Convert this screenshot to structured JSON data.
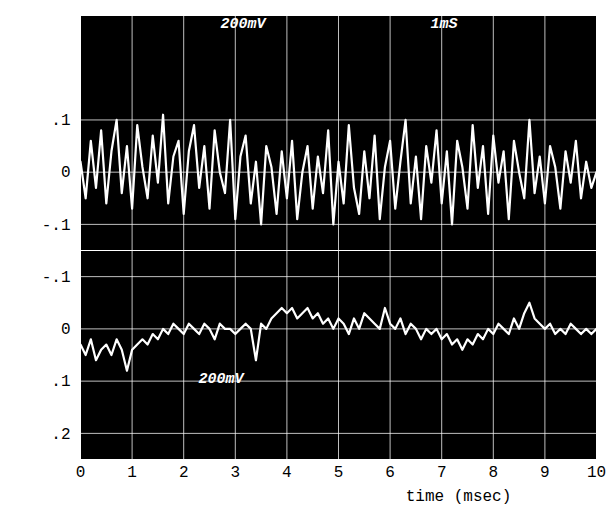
{
  "chart_data": [
    {
      "type": "line",
      "x": [
        0,
        0.1,
        0.2,
        0.3,
        0.4,
        0.5,
        0.6,
        0.7,
        0.8,
        0.9,
        1,
        1.1,
        1.2,
        1.3,
        1.4,
        1.5,
        1.6,
        1.7,
        1.8,
        1.9,
        2,
        2.1,
        2.2,
        2.3,
        2.4,
        2.5,
        2.6,
        2.7,
        2.8,
        2.9,
        3,
        3.1,
        3.2,
        3.3,
        3.4,
        3.5,
        3.6,
        3.7,
        3.8,
        3.9,
        4,
        4.1,
        4.2,
        4.3,
        4.4,
        4.5,
        4.6,
        4.7,
        4.8,
        4.9,
        5,
        5.1,
        5.2,
        5.3,
        5.4,
        5.5,
        5.6,
        5.7,
        5.8,
        5.9,
        6,
        6.1,
        6.2,
        6.3,
        6.4,
        6.5,
        6.6,
        6.7,
        6.8,
        6.9,
        7,
        7.1,
        7.2,
        7.3,
        7.4,
        7.5,
        7.6,
        7.7,
        7.8,
        7.9,
        8,
        8.1,
        8.2,
        8.3,
        8.4,
        8.5,
        8.6,
        8.7,
        8.8,
        8.9,
        9,
        9.1,
        9.2,
        9.3,
        9.4,
        9.5,
        9.6,
        9.7,
        9.8,
        9.9,
        10
      ],
      "values": [
        0.02,
        -0.05,
        0.06,
        -0.03,
        0.08,
        -0.06,
        0.04,
        0.1,
        -0.04,
        0.05,
        -0.07,
        0.09,
        0.01,
        -0.05,
        0.07,
        -0.02,
        0.11,
        -0.06,
        0.03,
        0.06,
        -0.08,
        0.04,
        0.09,
        -0.03,
        0.05,
        -0.07,
        0.08,
        0.0,
        -0.04,
        0.1,
        -0.09,
        0.03,
        0.07,
        -0.06,
        0.02,
        -0.1,
        0.05,
        0.01,
        -0.08,
        0.04,
        -0.05,
        0.06,
        -0.09,
        0.0,
        0.05,
        -0.07,
        0.03,
        -0.04,
        0.08,
        -0.1,
        0.02,
        -0.06,
        0.09,
        -0.03,
        -0.08,
        0.04,
        -0.05,
        0.07,
        -0.09,
        0.01,
        0.06,
        -0.07,
        0.02,
        0.1,
        -0.06,
        0.03,
        -0.09,
        0.05,
        -0.02,
        0.08,
        -0.06,
        0.04,
        -0.1,
        0.06,
        0.01,
        -0.07,
        0.09,
        -0.03,
        0.05,
        -0.08,
        0.07,
        -0.02,
        0.04,
        -0.09,
        0.06,
        0.0,
        -0.05,
        0.1,
        -0.04,
        0.03,
        -0.06,
        0.05,
        0.01,
        -0.07,
        0.04,
        -0.02,
        0.06,
        -0.05,
        0.02,
        -0.03,
        0.0
      ],
      "color": "#ffffff",
      "xlim": [
        0,
        10
      ],
      "xticks": [
        0,
        1,
        2,
        3,
        4,
        5,
        6,
        7,
        8,
        9,
        10
      ],
      "ylim": [
        -0.15,
        0.3
      ],
      "yticks": [
        {
          "value": 0.1,
          "label": ".1"
        },
        0,
        {
          "value": -0.1,
          "label": "-.1"
        }
      ],
      "grid": true,
      "tick_labels": "y",
      "annotations": [
        "200mV",
        "1mS"
      ]
    },
    {
      "type": "line",
      "x": [
        0,
        0.1,
        0.2,
        0.3,
        0.4,
        0.5,
        0.6,
        0.7,
        0.8,
        0.9,
        1,
        1.1,
        1.2,
        1.3,
        1.4,
        1.5,
        1.6,
        1.7,
        1.8,
        1.9,
        2,
        2.1,
        2.2,
        2.3,
        2.4,
        2.5,
        2.6,
        2.7,
        2.8,
        2.9,
        3,
        3.1,
        3.2,
        3.3,
        3.4,
        3.5,
        3.6,
        3.7,
        3.8,
        3.9,
        4,
        4.1,
        4.2,
        4.3,
        4.4,
        4.5,
        4.6,
        4.7,
        4.8,
        4.9,
        5,
        5.1,
        5.2,
        5.3,
        5.4,
        5.5,
        5.6,
        5.7,
        5.8,
        5.9,
        6,
        6.1,
        6.2,
        6.3,
        6.4,
        6.5,
        6.6,
        6.7,
        6.8,
        6.9,
        7,
        7.1,
        7.2,
        7.3,
        7.4,
        7.5,
        7.6,
        7.7,
        7.8,
        7.9,
        8,
        8.1,
        8.2,
        8.3,
        8.4,
        8.5,
        8.6,
        8.7,
        8.8,
        8.9,
        9,
        9.1,
        9.2,
        9.3,
        9.4,
        9.5,
        9.6,
        9.7,
        9.8,
        9.9,
        10
      ],
      "values": [
        0.03,
        0.05,
        0.02,
        0.06,
        0.04,
        0.03,
        0.05,
        0.02,
        0.04,
        0.08,
        0.04,
        0.03,
        0.02,
        0.03,
        0.01,
        0.02,
        0.0,
        0.01,
        -0.01,
        0.0,
        0.01,
        -0.01,
        0.0,
        0.01,
        -0.01,
        0.0,
        0.02,
        -0.01,
        0.0,
        0.0,
        0.01,
        0.0,
        -0.01,
        0.0,
        0.06,
        -0.01,
        0.0,
        -0.02,
        -0.03,
        -0.04,
        -0.03,
        -0.04,
        -0.02,
        -0.03,
        -0.04,
        -0.02,
        -0.03,
        -0.01,
        -0.02,
        0.0,
        -0.02,
        -0.01,
        0.01,
        -0.02,
        0.0,
        -0.03,
        -0.02,
        -0.01,
        0.0,
        -0.04,
        -0.01,
        0.0,
        -0.02,
        0.01,
        -0.01,
        0.0,
        0.02,
        0.0,
        0.01,
        0.0,
        0.02,
        0.01,
        0.03,
        0.02,
        0.04,
        0.02,
        0.03,
        0.01,
        0.02,
        0.0,
        0.01,
        -0.01,
        0.0,
        0.01,
        -0.02,
        0.0,
        -0.03,
        -0.05,
        -0.02,
        -0.01,
        0.0,
        -0.01,
        0.01,
        0.0,
        0.01,
        -0.01,
        0.0,
        0.01,
        0.0,
        0.01,
        0.0
      ],
      "color": "#ffffff",
      "xlim": [
        0,
        10
      ],
      "xticks": [
        0,
        1,
        2,
        3,
        4,
        5,
        6,
        7,
        8,
        9,
        10
      ],
      "x_label": "time (msec)",
      "ylim": [
        0.25,
        -0.15
      ],
      "yticks": [
        {
          "value": -0.1,
          "label": "-.1"
        },
        0,
        {
          "value": 0.1,
          "label": ".1"
        },
        {
          "value": 0.2,
          "label": ".2"
        }
      ],
      "grid": true,
      "annotations": [
        "200mV"
      ]
    }
  ]
}
